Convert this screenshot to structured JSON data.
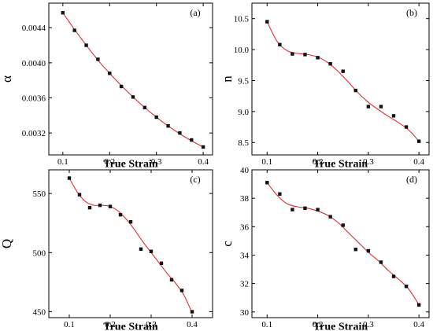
{
  "chart_data": [
    {
      "type": "line",
      "panel_label": "(a)",
      "xlabel": "True Strain",
      "ylabel": "α",
      "xlim": [
        0.07,
        0.42
      ],
      "ylim": [
        0.00295,
        0.00468
      ],
      "x_ticks": [
        0.1,
        0.2,
        0.3,
        0.4
      ],
      "x_tick_labels": [
        "0.1",
        "0.2",
        "0.3",
        "0.4"
      ],
      "y_ticks": [
        0.0032,
        0.0036,
        0.004,
        0.0044
      ],
      "y_tick_labels": [
        "0.0032",
        "0.0036",
        "0.0040",
        "0.0044"
      ],
      "x_tick_labels_shown": true,
      "series": [
        {
          "style": "points",
          "x": [
            0.1,
            0.125,
            0.15,
            0.175,
            0.2,
            0.225,
            0.25,
            0.275,
            0.3,
            0.325,
            0.35,
            0.375,
            0.4
          ],
          "y": [
            0.00457,
            0.00437,
            0.0042,
            0.00404,
            0.00388,
            0.00373,
            0.00361,
            0.00349,
            0.00338,
            0.00328,
            0.0032,
            0.00312,
            0.00304
          ]
        },
        {
          "style": "fit",
          "x": [
            0.1,
            0.125,
            0.15,
            0.175,
            0.2,
            0.225,
            0.25,
            0.275,
            0.3,
            0.325,
            0.35,
            0.375,
            0.4
          ],
          "y": [
            0.00457,
            0.00438,
            0.0042,
            0.00403,
            0.00388,
            0.00374,
            0.00361,
            0.00349,
            0.00338,
            0.00328,
            0.00319,
            0.00311,
            0.00304
          ]
        }
      ],
      "colors": {
        "fit": "#e03030",
        "points": "#111111"
      }
    },
    {
      "type": "line",
      "panel_label": "(b)",
      "xlabel": "True Strain",
      "ylabel": "n",
      "xlim": [
        0.07,
        0.42
      ],
      "ylim": [
        8.3,
        10.75
      ],
      "x_ticks": [
        0.1,
        0.2,
        0.3,
        0.4
      ],
      "x_tick_labels": [
        "0.1",
        "0.2",
        "0.3",
        "0.4"
      ],
      "y_ticks": [
        8.5,
        9.0,
        9.5,
        10.0,
        10.5
      ],
      "y_tick_labels": [
        "8.5",
        "9.0",
        "9.5",
        "10.0",
        "10.5"
      ],
      "x_tick_labels_shown": true,
      "series": [
        {
          "style": "points",
          "x": [
            0.1,
            0.125,
            0.15,
            0.175,
            0.2,
            0.225,
            0.25,
            0.275,
            0.3,
            0.325,
            0.35,
            0.375,
            0.4
          ],
          "y": [
            10.45,
            10.08,
            9.93,
            9.92,
            9.87,
            9.77,
            9.65,
            9.34,
            9.08,
            9.08,
            8.93,
            8.75,
            8.52
          ]
        },
        {
          "style": "fit",
          "x": [
            0.1,
            0.12,
            0.14,
            0.16,
            0.18,
            0.2,
            0.22,
            0.24,
            0.26,
            0.28,
            0.3,
            0.32,
            0.34,
            0.36,
            0.38,
            0.4
          ],
          "y": [
            10.45,
            10.13,
            9.98,
            9.94,
            9.92,
            9.88,
            9.79,
            9.65,
            9.48,
            9.3,
            9.15,
            9.03,
            8.92,
            8.82,
            8.7,
            8.52
          ]
        }
      ],
      "colors": {
        "fit": "#e03030",
        "points": "#111111"
      }
    },
    {
      "type": "line",
      "panel_label": "(c)",
      "xlabel": "True Strain",
      "ylabel": "Q",
      "xlim": [
        0.05,
        0.45
      ],
      "ylim": [
        445,
        570
      ],
      "x_ticks": [
        0.1,
        0.2,
        0.3,
        0.4
      ],
      "x_tick_labels": [
        "0.1",
        "0.2",
        "0.3",
        "0.4"
      ],
      "y_ticks": [
        450,
        500,
        550
      ],
      "y_tick_labels": [
        "450",
        "500",
        "550"
      ],
      "x_tick_labels_shown": true,
      "series": [
        {
          "style": "points",
          "x": [
            0.1,
            0.125,
            0.15,
            0.175,
            0.2,
            0.225,
            0.25,
            0.275,
            0.3,
            0.325,
            0.35,
            0.375,
            0.4
          ],
          "y": [
            563,
            549,
            538,
            540,
            539,
            532,
            526,
            503,
            501,
            491,
            477,
            468,
            450
          ]
        },
        {
          "style": "fit",
          "x": [
            0.1,
            0.12,
            0.14,
            0.16,
            0.18,
            0.2,
            0.22,
            0.24,
            0.26,
            0.28,
            0.3,
            0.32,
            0.34,
            0.36,
            0.38,
            0.4
          ],
          "y": [
            563,
            551,
            543,
            540,
            540,
            539,
            535,
            528,
            519,
            509,
            500,
            491,
            482,
            474,
            464,
            449
          ]
        }
      ],
      "colors": {
        "fit": "#e03030",
        "points": "#111111"
      }
    },
    {
      "type": "line",
      "panel_label": "(d)",
      "xlabel": "True Strain",
      "ylabel": "c",
      "xlim": [
        0.07,
        0.42
      ],
      "ylim": [
        29.6,
        40.0
      ],
      "x_ticks": [
        0.1,
        0.2,
        0.3,
        0.4
      ],
      "x_tick_labels": [
        "0.1",
        "0.2",
        "0.3",
        "0.4"
      ],
      "y_ticks": [
        30,
        32,
        34,
        36,
        38,
        40
      ],
      "y_tick_labels": [
        "30",
        "32",
        "34",
        "36",
        "38",
        "40"
      ],
      "x_tick_labels_shown": true,
      "series": [
        {
          "style": "points",
          "x": [
            0.1,
            0.125,
            0.15,
            0.175,
            0.2,
            0.225,
            0.25,
            0.275,
            0.3,
            0.325,
            0.35,
            0.375,
            0.4
          ],
          "y": [
            39.1,
            38.3,
            37.2,
            37.3,
            37.2,
            36.7,
            36.1,
            34.4,
            34.3,
            33.5,
            32.5,
            31.8,
            30.5
          ]
        },
        {
          "style": "fit",
          "x": [
            0.1,
            0.12,
            0.14,
            0.16,
            0.18,
            0.2,
            0.22,
            0.24,
            0.26,
            0.28,
            0.3,
            0.32,
            0.34,
            0.36,
            0.38,
            0.4
          ],
          "y": [
            39.1,
            38.2,
            37.6,
            37.4,
            37.3,
            37.1,
            36.8,
            36.3,
            35.6,
            34.9,
            34.2,
            33.6,
            32.9,
            32.3,
            31.6,
            30.5
          ]
        }
      ],
      "colors": {
        "fit": "#e03030",
        "points": "#111111"
      }
    }
  ]
}
